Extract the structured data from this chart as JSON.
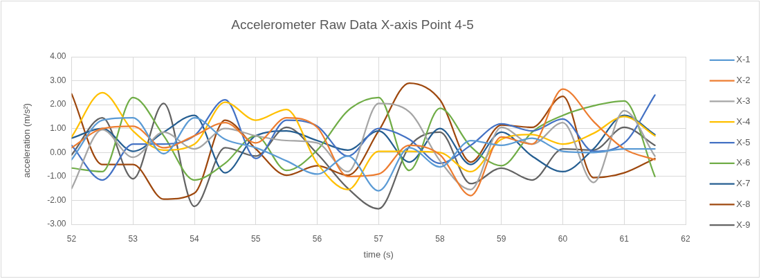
{
  "chart_data": {
    "type": "line",
    "title": "Accelerometer Raw Data X-axis Point 4-5",
    "xlabel": "time (s)",
    "ylabel": "acceleration (m/s²)",
    "x": [
      52,
      52.5,
      53,
      53.5,
      54,
      54.5,
      55,
      55.5,
      56,
      56.5,
      57,
      57.5,
      58,
      58.5,
      59,
      59.5,
      60,
      60.5,
      61,
      61.5
    ],
    "series": [
      {
        "name": "X-1",
        "color": "#5b9bd5",
        "values": [
          -0.3,
          1.35,
          1.45,
          -0.05,
          1.45,
          0.55,
          0.2,
          -0.35,
          -0.9,
          -0.15,
          -1.6,
          0.2,
          -0.6,
          0.5,
          0.3,
          0.6,
          0.05,
          0.0,
          0.15,
          0.15
        ]
      },
      {
        "name": "X-2",
        "color": "#ed7d31",
        "values": [
          0.2,
          1.0,
          1.1,
          0.2,
          0.7,
          1.25,
          0.4,
          1.45,
          1.05,
          -1.0,
          -0.9,
          0.3,
          -0.1,
          -1.8,
          0.65,
          0.35,
          2.65,
          1.3,
          0.15,
          -0.3
        ]
      },
      {
        "name": "X-3",
        "color": "#a5a5a5",
        "values": [
          -1.5,
          0.95,
          -0.2,
          0.85,
          0.15,
          1.0,
          0.7,
          0.5,
          0.4,
          -0.8,
          2.05,
          1.7,
          -0.35,
          -1.55,
          1.05,
          0.35,
          1.25,
          -1.25,
          1.75,
          -0.15
        ]
      },
      {
        "name": "X-4",
        "color": "#ffc000",
        "values": [
          0.65,
          2.5,
          0.9,
          0.1,
          0.35,
          2.1,
          1.35,
          1.8,
          -0.45,
          -1.55,
          0.05,
          0.05,
          0.0,
          -0.8,
          0.55,
          0.75,
          0.35,
          0.8,
          1.5,
          0.7
        ]
      },
      {
        "name": "X-5",
        "color": "#4472c4",
        "values": [
          0.3,
          -1.15,
          0.35,
          0.35,
          0.7,
          2.2,
          -0.25,
          1.35,
          1.1,
          -0.15,
          1.0,
          0.55,
          -0.45,
          0.3,
          1.2,
          0.9,
          1.4,
          0.05,
          0.4,
          2.4
        ]
      },
      {
        "name": "X-6",
        "color": "#70ad47",
        "values": [
          -0.65,
          -0.8,
          2.3,
          0.7,
          -1.15,
          -0.45,
          0.7,
          -0.75,
          0.1,
          1.75,
          2.3,
          -0.75,
          1.85,
          0.25,
          -0.55,
          0.85,
          1.55,
          1.95,
          2.15,
          -1.0
        ]
      },
      {
        "name": "X-7",
        "color": "#255e91",
        "values": [
          0.6,
          1.0,
          0.05,
          0.85,
          1.55,
          -0.85,
          0.7,
          0.9,
          0.5,
          0.1,
          0.9,
          -0.4,
          1.0,
          -0.5,
          0.85,
          -0.15,
          -0.8,
          0.15,
          1.55,
          0.75
        ]
      },
      {
        "name": "X-8",
        "color": "#9e480e",
        "values": [
          2.45,
          -0.5,
          -0.5,
          -1.95,
          -1.7,
          1.35,
          0.15,
          -0.95,
          -0.55,
          -0.95,
          0.9,
          2.9,
          2.2,
          -0.4,
          1.15,
          1.05,
          2.35,
          -1.05,
          -0.85,
          -0.25
        ]
      },
      {
        "name": "X-9",
        "color": "#636363",
        "values": [
          -0.1,
          1.45,
          -1.1,
          2.05,
          -2.25,
          0.2,
          -0.15,
          1.05,
          -0.05,
          -1.5,
          -2.35,
          0.25,
          0.85,
          -1.3,
          -0.65,
          -1.15,
          0.15,
          0.1,
          1.05,
          0.3
        ]
      }
    ],
    "xlim": [
      52,
      62
    ],
    "xticks": [
      52,
      53,
      54,
      55,
      56,
      57,
      58,
      59,
      60,
      61,
      62
    ],
    "ylim": [
      -3,
      4
    ],
    "yticks": [
      {
        "value": -3,
        "label": "-3.00"
      },
      {
        "value": -2,
        "label": "-2.00"
      },
      {
        "value": -1,
        "label": "-1.00"
      },
      {
        "value": 0,
        "label": "0.00"
      },
      {
        "value": 1,
        "label": "1.00"
      },
      {
        "value": 2,
        "label": "2.00"
      },
      {
        "value": 3,
        "label": "3.00"
      },
      {
        "value": 4,
        "label": "4.00"
      }
    ],
    "grid": true,
    "legend": "right"
  }
}
